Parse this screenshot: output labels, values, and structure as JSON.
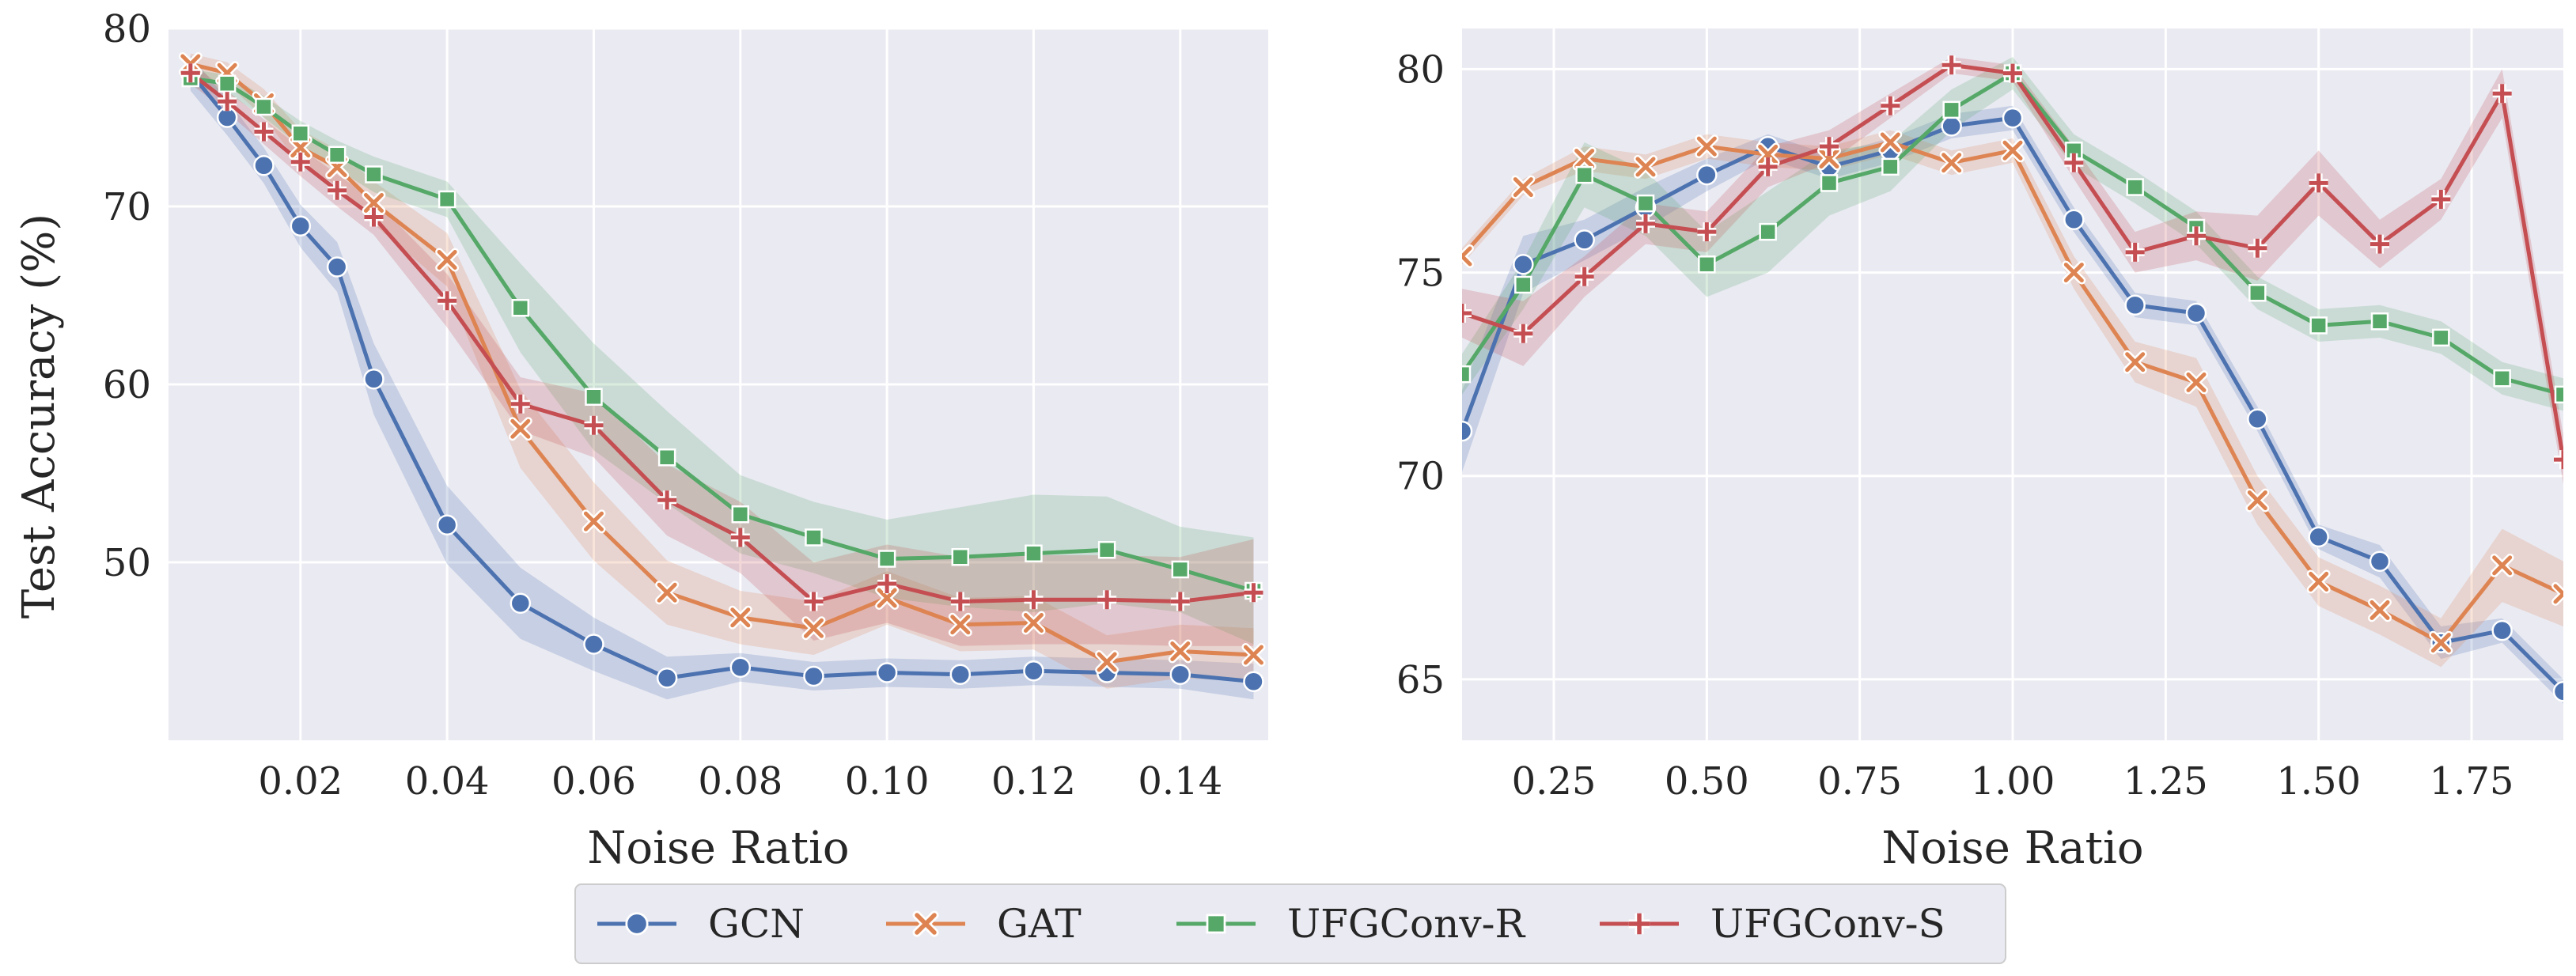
{
  "figure": {
    "legend": {
      "placement": "bottom-center",
      "entries": [
        {
          "name": "GCN",
          "color": "#4c72b0",
          "marker": "circle"
        },
        {
          "name": "GAT",
          "color": "#dd8452",
          "marker": "x"
        },
        {
          "name": "UFGConv-R",
          "color": "#55a868",
          "marker": "square"
        },
        {
          "name": "UFGConv-S",
          "color": "#c44e52",
          "marker": "plus"
        }
      ]
    }
  },
  "chart_data": [
    {
      "type": "line",
      "title": "",
      "xlabel": "Noise Ratio",
      "ylabel": "Test Accuracy (%)",
      "xlim": [
        0.002,
        0.152
      ],
      "ylim": [
        40,
        80
      ],
      "xticks": [
        0.02,
        0.04,
        0.06,
        0.08,
        0.1,
        0.12,
        0.14
      ],
      "xtick_labels": [
        "0.02",
        "0.04",
        "0.06",
        "0.08",
        "0.10",
        "0.12",
        "0.14"
      ],
      "yticks": [
        50,
        60,
        70,
        80
      ],
      "ytick_labels": [
        "50",
        "60",
        "70",
        "80"
      ],
      "grid": true,
      "x": [
        0.005,
        0.01,
        0.015,
        0.02,
        0.025,
        0.03,
        0.04,
        0.05,
        0.06,
        0.07,
        0.08,
        0.09,
        0.1,
        0.11,
        0.12,
        0.13,
        0.14,
        0.15
      ],
      "series": [
        {
          "name": "GCN",
          "values": [
            77.5,
            75.0,
            72.3,
            68.9,
            66.6,
            60.3,
            52.1,
            47.7,
            45.4,
            43.5,
            44.1,
            43.6,
            43.8,
            43.7,
            43.9,
            43.8,
            43.7,
            43.3
          ],
          "band": [
            1.0,
            1.0,
            1.0,
            1.2,
            1.4,
            2.0,
            2.2,
            2.0,
            1.5,
            1.2,
            0.8,
            0.8,
            0.8,
            0.8,
            0.8,
            0.8,
            0.8,
            1.0
          ]
        },
        {
          "name": "GAT",
          "values": [
            78.0,
            77.5,
            75.8,
            73.3,
            72.2,
            70.2,
            67.0,
            57.5,
            52.3,
            48.3,
            46.9,
            46.3,
            48.0,
            46.5,
            46.6,
            44.4,
            45.0,
            44.8
          ],
          "band": [
            0.6,
            0.6,
            0.8,
            1.0,
            1.0,
            1.2,
            1.5,
            2.2,
            2.2,
            1.8,
            1.5,
            1.5,
            1.5,
            1.5,
            1.5,
            1.5,
            1.5,
            1.5
          ]
        },
        {
          "name": "UFGConv-R",
          "values": [
            77.2,
            76.9,
            75.6,
            74.1,
            72.9,
            71.8,
            70.4,
            64.3,
            59.3,
            55.9,
            52.7,
            51.4,
            50.2,
            50.3,
            50.5,
            50.7,
            49.6,
            48.4
          ],
          "band": [
            0.5,
            0.5,
            0.6,
            0.7,
            0.8,
            1.0,
            1.0,
            2.5,
            3.0,
            2.6,
            2.2,
            2.0,
            2.2,
            2.8,
            3.3,
            3.0,
            2.4,
            3.0
          ]
        },
        {
          "name": "UFGConv-S",
          "values": [
            77.5,
            75.9,
            74.2,
            72.5,
            70.9,
            69.4,
            64.7,
            58.9,
            57.7,
            53.5,
            51.4,
            47.8,
            48.8,
            47.8,
            47.9,
            47.9,
            47.8,
            48.3
          ],
          "band": [
            0.6,
            0.6,
            0.7,
            0.8,
            0.9,
            1.0,
            1.5,
            1.5,
            1.8,
            2.0,
            2.0,
            2.2,
            2.2,
            2.5,
            2.5,
            2.5,
            2.5,
            3.0
          ]
        }
      ]
    },
    {
      "type": "line",
      "title": "",
      "xlabel": "Noise Ratio",
      "ylabel": "",
      "xlim": [
        0.1,
        1.9
      ],
      "ylim": [
        63.5,
        81
      ],
      "xticks": [
        0.25,
        0.5,
        0.75,
        1.0,
        1.25,
        1.5,
        1.75
      ],
      "xtick_labels": [
        "0.25",
        "0.50",
        "0.75",
        "1.00",
        "1.25",
        "1.50",
        "1.75"
      ],
      "yticks": [
        65,
        70,
        75,
        80
      ],
      "ytick_labels": [
        "65",
        "70",
        "75",
        "80"
      ],
      "grid": true,
      "x": [
        0.1,
        0.2,
        0.3,
        0.4,
        0.5,
        0.6,
        0.7,
        0.8,
        0.9,
        1.0,
        1.1,
        1.2,
        1.3,
        1.4,
        1.5,
        1.6,
        1.7,
        1.8,
        1.9
      ],
      "series": [
        {
          "name": "GCN",
          "values": [
            71.1,
            75.2,
            75.8,
            76.6,
            77.4,
            78.1,
            77.6,
            78.0,
            78.6,
            78.8,
            76.3,
            74.2,
            74.0,
            71.4,
            68.5,
            67.9,
            65.9,
            66.2,
            64.7
          ],
          "band": [
            1.0,
            0.7,
            0.5,
            0.5,
            0.4,
            0.3,
            0.3,
            0.3,
            0.3,
            0.3,
            0.3,
            0.3,
            0.3,
            0.3,
            0.3,
            0.4,
            0.4,
            0.3,
            0.3
          ]
        },
        {
          "name": "GAT",
          "values": [
            75.4,
            77.1,
            77.8,
            77.6,
            78.1,
            77.9,
            77.8,
            78.2,
            77.7,
            78.0,
            75.0,
            72.8,
            72.3,
            69.4,
            67.4,
            66.7,
            65.9,
            67.8,
            67.1
          ],
          "band": [
            0.2,
            0.2,
            0.3,
            0.3,
            0.3,
            0.3,
            0.3,
            0.3,
            0.3,
            0.3,
            0.4,
            0.5,
            0.6,
            0.6,
            0.6,
            0.6,
            0.6,
            0.9,
            0.8
          ]
        },
        {
          "name": "UFGConv-R",
          "values": [
            72.5,
            74.7,
            77.4,
            76.7,
            75.2,
            76.0,
            77.2,
            77.6,
            79.0,
            79.9,
            78.0,
            77.1,
            76.1,
            74.5,
            73.7,
            73.8,
            73.4,
            72.4,
            72.0
          ],
          "band": [
            0.5,
            0.6,
            0.8,
            0.8,
            0.8,
            1.0,
            0.8,
            0.6,
            0.5,
            0.4,
            0.4,
            0.4,
            0.4,
            0.4,
            0.4,
            0.4,
            0.4,
            0.4,
            0.4
          ]
        },
        {
          "name": "UFGConv-S",
          "values": [
            74.0,
            73.5,
            74.9,
            76.2,
            76.0,
            77.6,
            78.1,
            79.1,
            80.1,
            79.9,
            77.7,
            75.5,
            75.9,
            75.6,
            77.2,
            75.7,
            76.8,
            79.4,
            70.4
          ],
          "band": [
            0.6,
            0.8,
            0.5,
            0.5,
            0.5,
            0.5,
            0.4,
            0.3,
            0.2,
            0.2,
            0.4,
            0.5,
            0.6,
            0.8,
            0.8,
            0.6,
            0.5,
            0.6,
            0.6
          ]
        }
      ]
    }
  ]
}
